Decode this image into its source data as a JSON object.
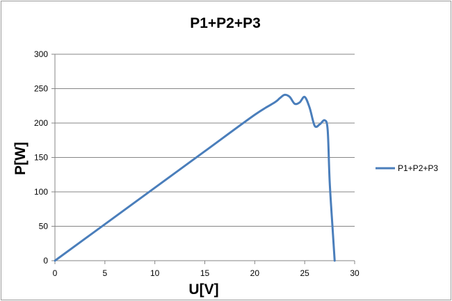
{
  "chart_data": {
    "type": "line",
    "title": "P1+P2+P3",
    "xlabel": "U[V]",
    "ylabel": "P[W]",
    "xlim": [
      0,
      30
    ],
    "ylim": [
      0,
      300
    ],
    "x_ticks": [
      0,
      5,
      10,
      15,
      20,
      25,
      30
    ],
    "y_ticks": [
      0,
      50,
      100,
      150,
      200,
      250,
      300
    ],
    "grid": "horizontal",
    "legend_position": "right",
    "colors": {
      "series": "#4a7ebb",
      "grid": "#868686",
      "axis": "#868686"
    },
    "series": [
      {
        "name": "P1+P2+P3",
        "x": [
          0,
          5,
          10,
          15,
          20,
          22,
          22.5,
          23,
          23.5,
          24,
          24.5,
          25,
          25.5,
          26,
          26.5,
          27,
          27.3,
          27.5,
          27.8,
          28
        ],
        "y": [
          0,
          53,
          106,
          159,
          212,
          230,
          236,
          241,
          238,
          228,
          230,
          238,
          222,
          196,
          198,
          204,
          190,
          115,
          45,
          0
        ]
      }
    ]
  }
}
